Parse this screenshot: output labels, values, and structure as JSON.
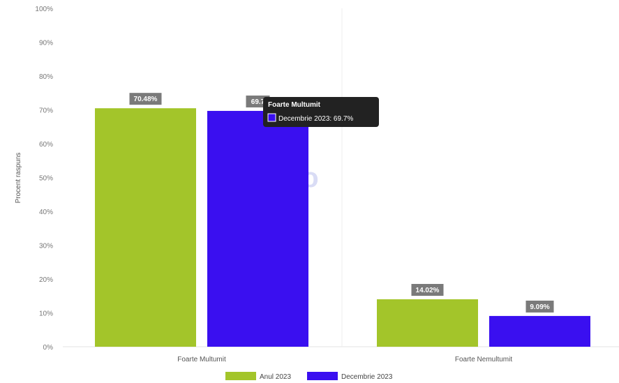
{
  "chart_data": {
    "type": "bar",
    "categories": [
      "Foarte Multumit",
      "Foarte Nemultumit"
    ],
    "series": [
      {
        "name": "Anul 2023",
        "values": [
          70.48,
          14.02
        ],
        "labels": [
          "70.48%",
          "14.02%"
        ],
        "color": "#a3c52a"
      },
      {
        "name": "Decembrie 2023",
        "values": [
          69.7,
          9.09
        ],
        "labels": [
          "69.7",
          "9.09%"
        ],
        "color": "#3a0ff0"
      }
    ],
    "ylabel": "Procent raspuns",
    "ylim": [
      0,
      100
    ],
    "yticks": [
      "0%",
      "10%",
      "20%",
      "30%",
      "40%",
      "50%",
      "60%",
      "70%",
      "80%",
      "90%",
      "100%"
    ],
    "legend_position": "bottom",
    "grid": false
  },
  "watermark": "s.ro",
  "tooltip": {
    "title": "Foarte Multumit",
    "text": "Decembrie 2023: 69.7%"
  }
}
